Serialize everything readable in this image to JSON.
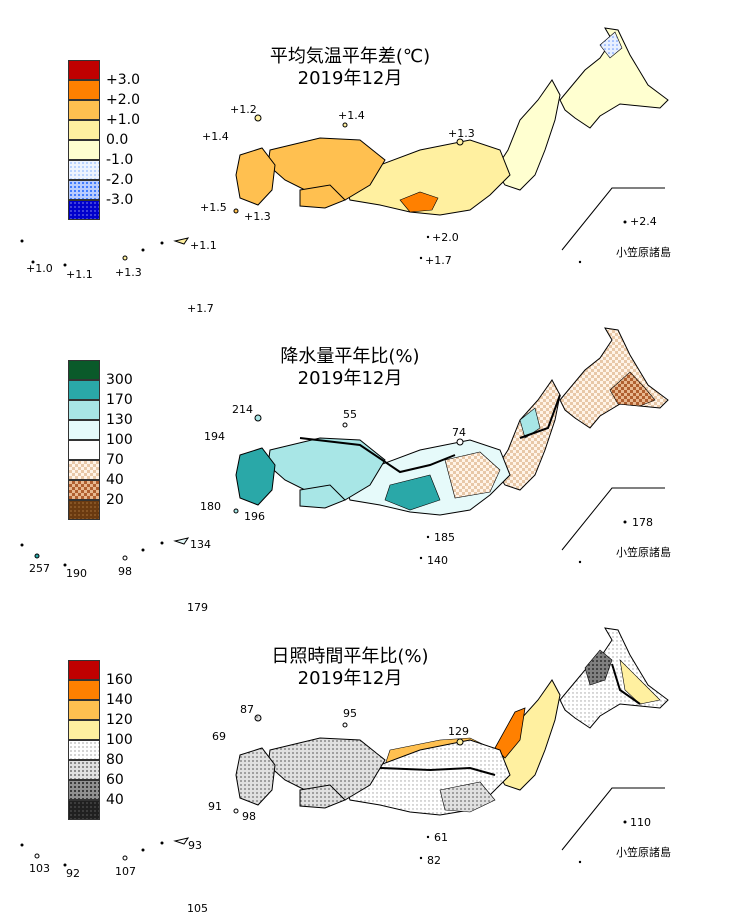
{
  "panels": [
    {
      "id": "temp",
      "title_line1": "平均気温平年差(℃)",
      "title_line2": "2019年12月",
      "legend": [
        {
          "color": "#c00000",
          "pattern": "solid"
        },
        {
          "color": "#ff8000",
          "pattern": "solid",
          "label": "+3.0"
        },
        {
          "color": "#ffc050",
          "pattern": "solid",
          "label": "+2.0"
        },
        {
          "color": "#fff0a0",
          "pattern": "solid",
          "label": "+1.0"
        },
        {
          "color": "#ffffd0",
          "pattern": "solid",
          "label": "0.0"
        },
        {
          "color": "#a8c8ff",
          "pattern": "dots-light",
          "label": "-1.0"
        },
        {
          "color": "#6090ff",
          "pattern": "dots",
          "label": "-2.0"
        },
        {
          "color": "#0000cc",
          "pattern": "dots-dense",
          "label": "-3.0"
        }
      ],
      "values": [
        "+1.2",
        "+1.4",
        "+1.4",
        "+1.3",
        "+1.5",
        "+1.3",
        "+2.0",
        "+1.7",
        "+1.1",
        "+1.0",
        "+1.1",
        "+1.3",
        "+1.7",
        "+2.4"
      ],
      "island_label": "小笠原諸島"
    },
    {
      "id": "precip",
      "title_line1": "降水量平年比(%)",
      "title_line2": "2019年12月",
      "legend": [
        {
          "color": "#0a5a2a",
          "pattern": "solid"
        },
        {
          "color": "#2aa8a8",
          "pattern": "solid",
          "label": "300"
        },
        {
          "color": "#a8e6e6",
          "pattern": "solid",
          "label": "170"
        },
        {
          "color": "#e6fafa",
          "pattern": "solid",
          "label": "130"
        },
        {
          "color": "#ffffff",
          "pattern": "solid",
          "label": "100"
        },
        {
          "color": "#e8c8a8",
          "pattern": "check-light",
          "label": "70"
        },
        {
          "color": "#c87a40",
          "pattern": "check",
          "label": "40"
        },
        {
          "color": "#6a3a10",
          "pattern": "dots-dense",
          "label": "20"
        }
      ],
      "values": [
        "214",
        "55",
        "194",
        "74",
        "180",
        "196",
        "185",
        "140",
        "134",
        "257",
        "190",
        "98",
        "179",
        "178"
      ],
      "island_label": "小笠原諸島"
    },
    {
      "id": "sun",
      "title_line1": "日照時間平年比(%)",
      "title_line2": "2019年12月",
      "legend": [
        {
          "color": "#c00000",
          "pattern": "solid"
        },
        {
          "color": "#ff8000",
          "pattern": "solid",
          "label": "160"
        },
        {
          "color": "#ffc050",
          "pattern": "solid",
          "label": "140"
        },
        {
          "color": "#fff0a0",
          "pattern": "solid",
          "label": "120"
        },
        {
          "color": "#ffffff",
          "pattern": "solid",
          "label": "100"
        },
        {
          "color": "#e0e0e0",
          "pattern": "dots-light",
          "label": "80"
        },
        {
          "color": "#a0a0a0",
          "pattern": "dots",
          "label": "60"
        },
        {
          "color": "#404040",
          "pattern": "dots-dense",
          "label": "40"
        }
      ],
      "values": [
        "87",
        "95",
        "69",
        "129",
        "91",
        "98",
        "61",
        "82",
        "93",
        "103",
        "92",
        "107",
        "105",
        "110"
      ],
      "island_label": "小笠原諸島"
    }
  ]
}
